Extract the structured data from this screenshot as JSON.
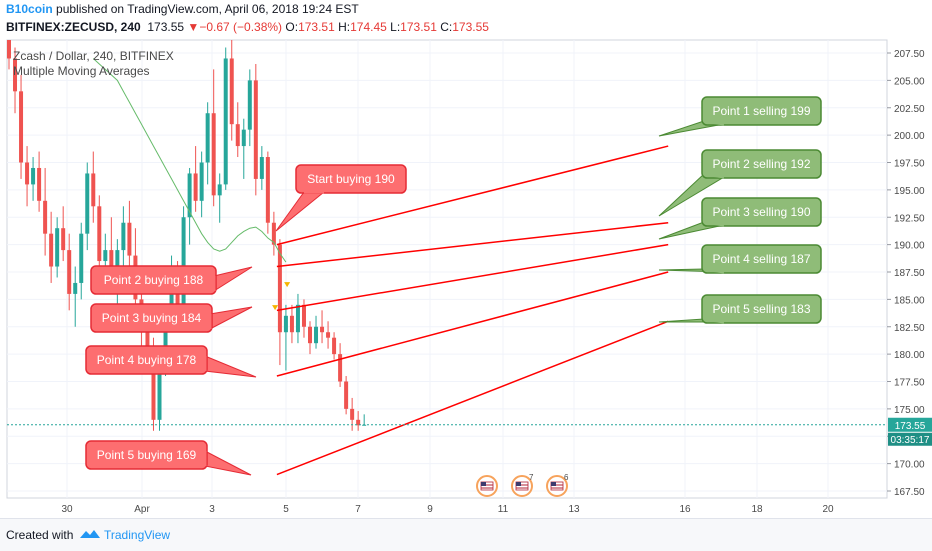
{
  "header": {
    "author": "B10coin",
    "published_text": " published on TradingView.com, April 06, 2018 19:24 EST",
    "symbol": "BITFINEX:ZECUSD, 240",
    "last": "173.55",
    "change_arrow": "▼",
    "change": "−0.67 (−0.38%)",
    "o_label": "O:",
    "o_value": "173.51",
    "h_label": "H:",
    "h_value": "174.45",
    "l_label": "L:",
    "l_value": "173.51",
    "c_label": "C:",
    "c_value": "173.55"
  },
  "legend": {
    "title": "Zcash / Dollar, 240, BITFINEX",
    "indicator": "Multiple Moving Averages"
  },
  "price_tag": {
    "value": "173.55",
    "countdown": "03:35:17"
  },
  "footer": {
    "created_with": "Created with",
    "brand": "TradingView"
  },
  "colors": {
    "bull": "#26a69a",
    "bear": "#ef5350",
    "ma": "#66bb6a",
    "trend_line": "#ff0000",
    "buy_callout_fill": "#fd6e70",
    "sell_callout_fill": "#8fbc78",
    "price_tag": "#26a69a"
  },
  "chart_data": {
    "type": "candlestick",
    "ylim": [
      166.5,
      208.5
    ],
    "y_ticks": [
      207.5,
      205.0,
      202.5,
      200.0,
      197.5,
      195.0,
      192.5,
      190.0,
      187.5,
      185.0,
      182.5,
      180.0,
      177.5,
      175.0,
      172.5,
      170.0,
      167.5
    ],
    "x_tick_labels": [
      "30",
      "Apr",
      "3",
      "5",
      "7",
      "9",
      "11",
      "13",
      "16",
      "18",
      "20"
    ],
    "candles": [
      {
        "o": 215.0,
        "h": 216.0,
        "l": 206.0,
        "c": 207.0
      },
      {
        "o": 207.0,
        "h": 208.0,
        "l": 202.0,
        "c": 204.0
      },
      {
        "o": 204.0,
        "h": 205.5,
        "l": 196.0,
        "c": 197.5
      },
      {
        "o": 197.5,
        "h": 199.0,
        "l": 193.5,
        "c": 195.5
      },
      {
        "o": 195.5,
        "h": 198.0,
        "l": 194.0,
        "c": 197.0
      },
      {
        "o": 197.0,
        "h": 198.5,
        "l": 193.0,
        "c": 194.0
      },
      {
        "o": 194.0,
        "h": 197.0,
        "l": 189.0,
        "c": 191.0
      },
      {
        "o": 191.0,
        "h": 193.0,
        "l": 186.5,
        "c": 188.0
      },
      {
        "o": 188.0,
        "h": 192.5,
        "l": 187.0,
        "c": 191.5
      },
      {
        "o": 191.5,
        "h": 193.5,
        "l": 188.5,
        "c": 189.5
      },
      {
        "o": 189.5,
        "h": 191.0,
        "l": 184.0,
        "c": 185.5
      },
      {
        "o": 185.5,
        "h": 188.0,
        "l": 182.5,
        "c": 186.5
      },
      {
        "o": 186.5,
        "h": 192.0,
        "l": 185.0,
        "c": 191.0
      },
      {
        "o": 191.0,
        "h": 197.5,
        "l": 189.5,
        "c": 196.5
      },
      {
        "o": 196.5,
        "h": 198.5,
        "l": 192.0,
        "c": 193.5
      },
      {
        "o": 193.5,
        "h": 194.5,
        "l": 187.5,
        "c": 188.5
      },
      {
        "o": 188.5,
        "h": 191.0,
        "l": 185.5,
        "c": 189.5
      },
      {
        "o": 189.5,
        "h": 192.5,
        "l": 186.0,
        "c": 187.0
      },
      {
        "o": 187.0,
        "h": 190.5,
        "l": 184.5,
        "c": 189.5
      },
      {
        "o": 189.5,
        "h": 193.5,
        "l": 187.5,
        "c": 192.0
      },
      {
        "o": 192.0,
        "h": 194.0,
        "l": 188.0,
        "c": 189.0
      },
      {
        "o": 189.0,
        "h": 191.5,
        "l": 184.0,
        "c": 185.0
      },
      {
        "o": 185.0,
        "h": 187.0,
        "l": 180.5,
        "c": 182.0
      },
      {
        "o": 182.0,
        "h": 184.0,
        "l": 178.5,
        "c": 179.5
      },
      {
        "o": 179.5,
        "h": 181.5,
        "l": 173.0,
        "c": 174.0
      },
      {
        "o": 174.0,
        "h": 180.0,
        "l": 173.0,
        "c": 179.0
      },
      {
        "o": 179.0,
        "h": 184.0,
        "l": 178.0,
        "c": 183.5
      },
      {
        "o": 183.5,
        "h": 189.0,
        "l": 182.0,
        "c": 188.0
      },
      {
        "o": 188.0,
        "h": 188.5,
        "l": 182.5,
        "c": 183.5
      },
      {
        "o": 183.5,
        "h": 193.5,
        "l": 183.0,
        "c": 192.5
      },
      {
        "o": 192.5,
        "h": 197.0,
        "l": 190.0,
        "c": 196.5
      },
      {
        "o": 196.5,
        "h": 199.0,
        "l": 193.0,
        "c": 194.0
      },
      {
        "o": 194.0,
        "h": 198.5,
        "l": 192.5,
        "c": 197.5
      },
      {
        "o": 197.5,
        "h": 203.0,
        "l": 195.5,
        "c": 202.0
      },
      {
        "o": 202.0,
        "h": 206.0,
        "l": 193.5,
        "c": 194.5
      },
      {
        "o": 194.5,
        "h": 196.5,
        "l": 192.0,
        "c": 195.5
      },
      {
        "o": 195.5,
        "h": 208.0,
        "l": 195.0,
        "c": 207.0
      },
      {
        "o": 207.0,
        "h": 209.0,
        "l": 199.5,
        "c": 201.0
      },
      {
        "o": 201.0,
        "h": 203.0,
        "l": 198.0,
        "c": 199.0
      },
      {
        "o": 199.0,
        "h": 201.5,
        "l": 196.0,
        "c": 200.5
      },
      {
        "o": 200.5,
        "h": 206.0,
        "l": 199.0,
        "c": 205.0
      },
      {
        "o": 205.0,
        "h": 206.5,
        "l": 194.5,
        "c": 196.0
      },
      {
        "o": 196.0,
        "h": 199.0,
        "l": 195.0,
        "c": 198.0
      },
      {
        "o": 198.0,
        "h": 198.5,
        "l": 191.0,
        "c": 192.0
      },
      {
        "o": 192.0,
        "h": 193.0,
        "l": 189.0,
        "c": 190.0
      },
      {
        "o": 190.0,
        "h": 190.5,
        "l": 179.0,
        "c": 182.0
      },
      {
        "o": 182.0,
        "h": 184.5,
        "l": 178.5,
        "c": 183.5
      },
      {
        "o": 183.5,
        "h": 184.5,
        "l": 181.0,
        "c": 182.0
      },
      {
        "o": 182.0,
        "h": 185.5,
        "l": 181.0,
        "c": 184.5
      },
      {
        "o": 184.5,
        "h": 185.0,
        "l": 181.5,
        "c": 182.5
      },
      {
        "o": 182.5,
        "h": 183.0,
        "l": 180.0,
        "c": 181.0
      },
      {
        "o": 181.0,
        "h": 183.5,
        "l": 180.5,
        "c": 182.5
      },
      {
        "o": 182.5,
        "h": 184.0,
        "l": 181.0,
        "c": 182.0
      },
      {
        "o": 182.0,
        "h": 183.0,
        "l": 180.5,
        "c": 181.5
      },
      {
        "o": 181.5,
        "h": 182.0,
        "l": 179.5,
        "c": 180.0
      },
      {
        "o": 180.0,
        "h": 181.0,
        "l": 177.0,
        "c": 177.5
      },
      {
        "o": 177.5,
        "h": 178.0,
        "l": 174.5,
        "c": 175.0
      },
      {
        "o": 175.0,
        "h": 176.0,
        "l": 173.0,
        "c": 174.0
      },
      {
        "o": 174.0,
        "h": 174.8,
        "l": 173.0,
        "c": 173.5
      },
      {
        "o": 173.5,
        "h": 174.5,
        "l": 173.5,
        "c": 173.55
      }
    ],
    "moving_average": [
      207.0,
      206.5,
      206.0,
      205.5,
      205.0,
      204.0,
      203.0,
      202.0,
      201.0,
      200.0,
      199.0,
      198.0,
      197.0,
      196.0,
      195.0,
      194.0,
      193.0,
      192.0,
      191.0,
      190.2,
      189.6,
      189.4,
      189.6,
      190.2,
      190.8,
      191.2,
      191.5,
      191.6,
      191.2,
      190.6,
      190.2,
      189.2,
      188.4
    ],
    "trend_lines": [
      {
        "x1_bar": 44.5,
        "y1": 190.0,
        "x2_bar": 109.5,
        "y2": 199.0
      },
      {
        "x1_bar": 44.5,
        "y1": 188.0,
        "x2_bar": 109.5,
        "y2": 192.0
      },
      {
        "x1_bar": 44.5,
        "y1": 184.0,
        "x2_bar": 109.5,
        "y2": 190.0
      },
      {
        "x1_bar": 44.5,
        "y1": 178.0,
        "x2_bar": 109.5,
        "y2": 187.5
      },
      {
        "x1_bar": 44.5,
        "y1": 169.0,
        "x2_bar": 109.5,
        "y2": 183.0
      }
    ],
    "callouts": [
      {
        "text": "Start buying 190",
        "kind": "buy"
      },
      {
        "text": "Point 2 buying 188",
        "kind": "buy"
      },
      {
        "text": "Point 3 buying 184",
        "kind": "buy"
      },
      {
        "text": "Point 4 buying 178",
        "kind": "buy"
      },
      {
        "text": "Point 5 buying 169",
        "kind": "buy"
      },
      {
        "text": "Point 1 selling 199",
        "kind": "sell"
      },
      {
        "text": "Point 2 selling 192",
        "kind": "sell"
      },
      {
        "text": "Point 3 selling 190",
        "kind": "sell"
      },
      {
        "text": "Point 4 selling 187",
        "kind": "sell"
      },
      {
        "text": "Point 5 selling 183",
        "kind": "sell"
      }
    ],
    "events": [
      {
        "name": "us-flag-icon",
        "count": ""
      },
      {
        "name": "us-flag-icon",
        "count": "7"
      },
      {
        "name": "us-flag-icon",
        "count": "6"
      }
    ]
  }
}
